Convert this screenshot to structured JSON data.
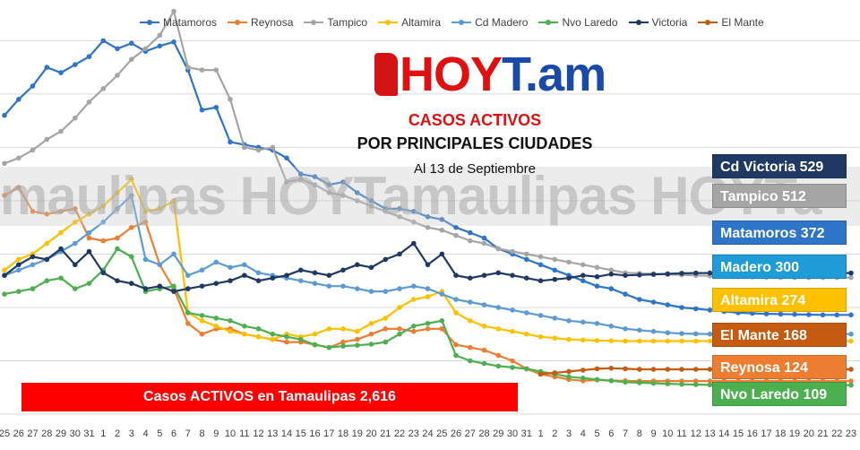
{
  "chart_data": {
    "type": "line",
    "title": "CASOS ACTIVOS",
    "subtitle": "POR PRINCIPALES CIUDADES",
    "date_label": "Al 13 de Septiembre",
    "xlabel": "",
    "ylabel": "",
    "x": [
      "25",
      "26",
      "27",
      "28",
      "29",
      "30",
      "31",
      "1",
      "2",
      "3",
      "4",
      "5",
      "6",
      "7",
      "8",
      "9",
      "10",
      "11",
      "12",
      "13",
      "14",
      "15",
      "16",
      "17",
      "18",
      "19",
      "20",
      "21",
      "22",
      "23",
      "24",
      "25",
      "26",
      "27",
      "28",
      "29",
      "30",
      "31",
      "1",
      "2",
      "3",
      "4",
      "5",
      "6",
      "7",
      "8",
      "9",
      "10",
      "11",
      "12",
      "13",
      "14",
      "15",
      "16",
      "17",
      "18",
      "19",
      "20",
      "21",
      "22",
      "23"
    ],
    "ylim": [
      0,
      1400
    ],
    "grid": true,
    "legend_position": "top",
    "series": [
      {
        "name": "Matamoros",
        "color": "#2e74c8",
        "values": [
          1120,
          1180,
          1230,
          1300,
          1280,
          1310,
          1340,
          1400,
          1370,
          1390,
          1360,
          1380,
          1395,
          1290,
          1140,
          1150,
          1020,
          1010,
          1000,
          990,
          960,
          900,
          890,
          860,
          870,
          830,
          800,
          770,
          770,
          760,
          740,
          730,
          700,
          680,
          660,
          620,
          600,
          580,
          560,
          540,
          520,
          500,
          480,
          470,
          450,
          430,
          420,
          410,
          400,
          395,
          390,
          385,
          380,
          378,
          376,
          375,
          374,
          373,
          372,
          372,
          372
        ]
      },
      {
        "name": "Reynosa",
        "color": "#ed7d31",
        "values": [
          820,
          850,
          760,
          750,
          760,
          770,
          660,
          650,
          660,
          700,
          720,
          560,
          470,
          340,
          300,
          320,
          320,
          300,
          290,
          280,
          270,
          270,
          260,
          250,
          270,
          280,
          300,
          320,
          320,
          310,
          320,
          320,
          260,
          250,
          240,
          220,
          200,
          170,
          150,
          140,
          130,
          125,
          128,
          126,
          125,
          124,
          124,
          124,
          124,
          124,
          124,
          124,
          124,
          124,
          124,
          124,
          124,
          124,
          124,
          124,
          124
        ]
      },
      {
        "name": "Tampico",
        "color": "#a5a5a5",
        "values": [
          940,
          960,
          990,
          1030,
          1060,
          1110,
          1170,
          1220,
          1270,
          1330,
          1370,
          1420,
          1510,
          1300,
          1290,
          1290,
          1180,
          1000,
          990,
          1000,
          870,
          880,
          860,
          830,
          820,
          800,
          780,
          760,
          740,
          720,
          700,
          690,
          670,
          650,
          640,
          620,
          610,
          600,
          590,
          580,
          570,
          560,
          550,
          540,
          530,
          528,
          526,
          524,
          522,
          520,
          518,
          516,
          515,
          514,
          513,
          512,
          512,
          512,
          512,
          512,
          512
        ]
      },
      {
        "name": "Altamira",
        "color": "#ffc000",
        "values": [
          540,
          580,
          600,
          640,
          680,
          720,
          750,
          780,
          830,
          880,
          760,
          770,
          800,
          380,
          350,
          330,
          310,
          300,
          290,
          280,
          300,
          290,
          300,
          320,
          320,
          310,
          340,
          360,
          400,
          430,
          440,
          460,
          380,
          350,
          330,
          320,
          310,
          300,
          290,
          285,
          280,
          278,
          276,
          275,
          274,
          274,
          274,
          274,
          274,
          274,
          274,
          274,
          274,
          274,
          274,
          274,
          274,
          274,
          274,
          274,
          274
        ]
      },
      {
        "name": "Cd Madero",
        "color": "#5b9bd5",
        "values": [
          520,
          540,
          560,
          580,
          610,
          640,
          680,
          720,
          770,
          820,
          580,
          560,
          600,
          520,
          540,
          570,
          550,
          560,
          530,
          520,
          510,
          500,
          490,
          480,
          480,
          470,
          460,
          460,
          470,
          480,
          470,
          450,
          430,
          420,
          410,
          400,
          390,
          380,
          370,
          360,
          350,
          345,
          340,
          330,
          320,
          315,
          310,
          305,
          302,
          301,
          300,
          300,
          300,
          300,
          300,
          300,
          300,
          300,
          300,
          300,
          300
        ]
      },
      {
        "name": "Nvo Laredo",
        "color": "#4caf50",
        "values": [
          450,
          460,
          470,
          500,
          510,
          470,
          490,
          540,
          620,
          590,
          460,
          470,
          480,
          380,
          370,
          360,
          350,
          330,
          320,
          300,
          290,
          280,
          260,
          250,
          255,
          258,
          262,
          270,
          300,
          330,
          340,
          350,
          220,
          200,
          190,
          180,
          175,
          170,
          160,
          150,
          140,
          135,
          130,
          125,
          120,
          118,
          116,
          114,
          112,
          111,
          110,
          110,
          109,
          109,
          109,
          109,
          109,
          109,
          109,
          109,
          109
        ]
      },
      {
        "name": "Victoria",
        "color": "#1f3864",
        "values": [
          520,
          560,
          590,
          580,
          620,
          560,
          610,
          530,
          500,
          490,
          470,
          480,
          460,
          470,
          480,
          490,
          500,
          520,
          500,
          510,
          520,
          540,
          530,
          520,
          540,
          560,
          550,
          580,
          600,
          640,
          560,
          600,
          520,
          510,
          520,
          530,
          520,
          510,
          500,
          505,
          510,
          520,
          515,
          525,
          520,
          522,
          524,
          526,
          528,
          529,
          529,
          529,
          529,
          529,
          529,
          529,
          529,
          529,
          529,
          529,
          529
        ]
      },
      {
        "name": "El Mante",
        "color": "#c55a11",
        "values": [
          null,
          null,
          null,
          null,
          null,
          null,
          null,
          null,
          null,
          null,
          null,
          null,
          null,
          null,
          null,
          null,
          null,
          null,
          null,
          null,
          null,
          null,
          null,
          null,
          null,
          null,
          null,
          null,
          null,
          null,
          null,
          null,
          null,
          null,
          null,
          null,
          null,
          null,
          150,
          155,
          160,
          165,
          170,
          172,
          170,
          168,
          168,
          168,
          168,
          168,
          168,
          168,
          168,
          168,
          168,
          168,
          168,
          168,
          168,
          168,
          168
        ]
      }
    ]
  },
  "logo": {
    "text": "HOYT.am",
    "prefix": "HOY",
    "suffix": "T.am"
  },
  "watermark": "maulipas HOYTamaulipas HOYTa",
  "badges": [
    {
      "label": "Cd Victoria 529",
      "color": "#1f3864"
    },
    {
      "label": "Tampico 512",
      "color": "#a5a5a5"
    },
    {
      "label": "Matamoros 372",
      "color": "#2e74c8"
    },
    {
      "label": "Madero 300",
      "color": "#1e9cd7"
    },
    {
      "label": "Altamira 274",
      "color": "#ffc000"
    },
    {
      "label": "El Mante 168",
      "color": "#c55a11"
    },
    {
      "label": "Reynosa 124",
      "color": "#ed7d31"
    },
    {
      "label": "Nvo Laredo 109",
      "color": "#4caf50"
    }
  ],
  "total_label": "Casos ACTIVOS en Tamaulipas 2,616"
}
